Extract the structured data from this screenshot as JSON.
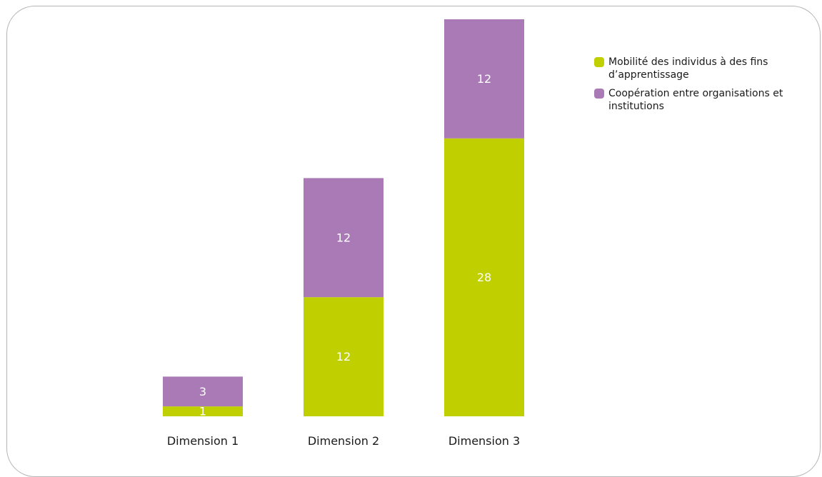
{
  "chart_data": {
    "type": "bar",
    "stacked": true,
    "categories": [
      "Dimension 1",
      "Dimension 2",
      "Dimension 3"
    ],
    "series": [
      {
        "name": "Mobilité des individus à des fins d’apprentissage",
        "values": [
          1,
          12,
          28
        ],
        "color": "#bfcf00"
      },
      {
        "name": "Coopération entre organisations et institutions",
        "values": [
          3,
          12,
          12
        ],
        "color": "#a97ab5"
      }
    ],
    "title": "",
    "xlabel": "",
    "ylabel": "",
    "ylim": [
      0,
      40
    ],
    "grid": false,
    "legend_position": "top-right"
  }
}
